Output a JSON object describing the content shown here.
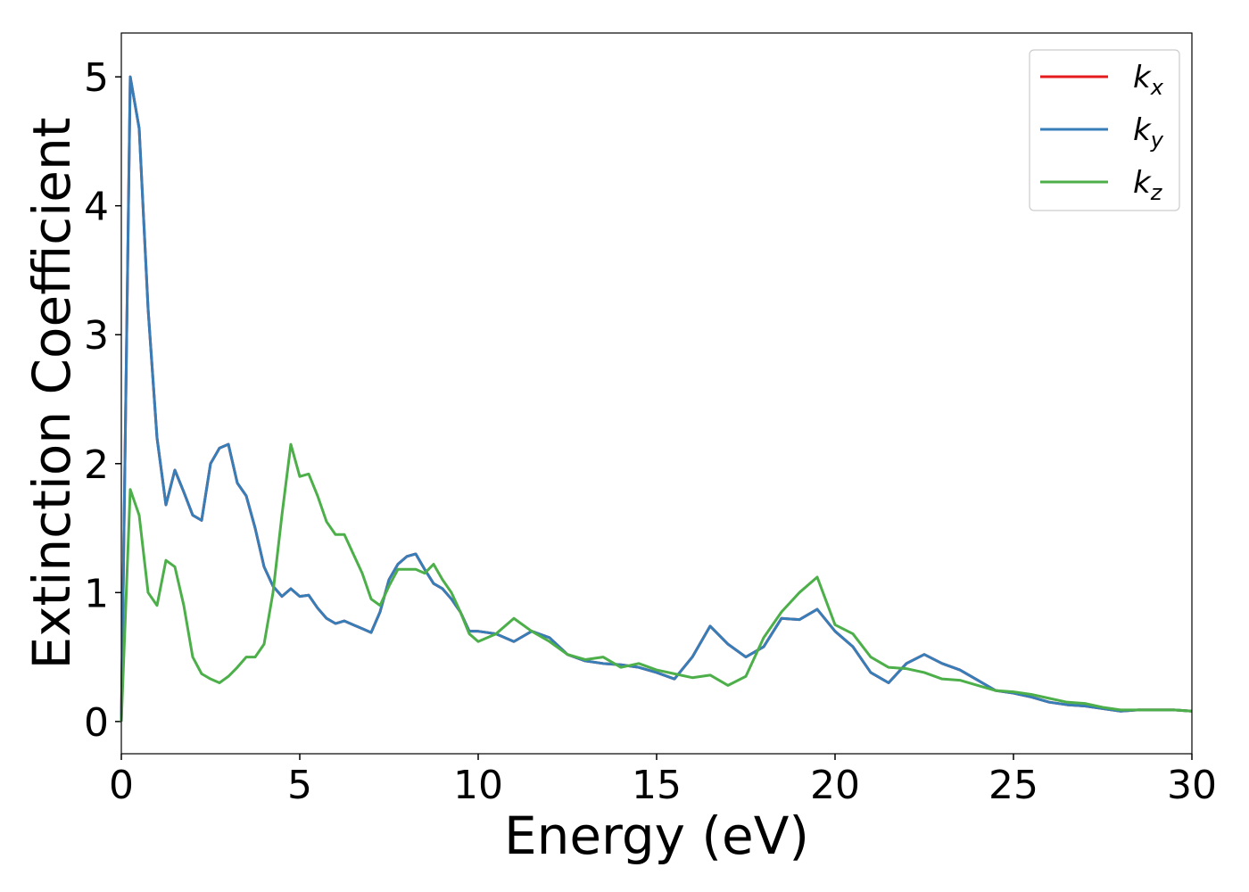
{
  "chart_data": {
    "type": "line",
    "xlabel": "Energy (eV)",
    "ylabel": "Extinction Coefficient",
    "x": [
      0,
      0.25,
      0.5,
      0.75,
      1,
      1.25,
      1.5,
      1.75,
      2,
      2.25,
      2.5,
      2.75,
      3,
      3.25,
      3.5,
      3.75,
      4,
      4.25,
      4.5,
      4.75,
      5,
      5.25,
      5.5,
      5.75,
      6,
      6.25,
      6.5,
      6.75,
      7,
      7.25,
      7.5,
      7.75,
      8,
      8.25,
      8.5,
      8.75,
      9,
      9.25,
      9.5,
      9.75,
      10,
      10.5,
      11,
      11.5,
      12,
      12.5,
      13,
      13.5,
      14,
      14.5,
      15,
      15.5,
      16,
      16.5,
      17,
      17.5,
      18,
      18.5,
      19,
      19.5,
      20,
      20.5,
      21,
      21.5,
      22,
      22.5,
      23,
      23.5,
      24,
      24.5,
      25,
      25.5,
      26,
      26.5,
      27,
      27.5,
      28,
      28.5,
      29,
      29.5,
      30
    ],
    "series": [
      {
        "name": "kx",
        "color": "#e41a1c",
        "values": [
          0,
          5.0,
          4.6,
          3.2,
          2.2,
          1.68,
          1.95,
          1.78,
          1.6,
          1.56,
          2.0,
          2.12,
          2.15,
          1.85,
          1.75,
          1.5,
          1.2,
          1.05,
          0.97,
          1.03,
          0.97,
          0.98,
          0.88,
          0.8,
          0.76,
          0.78,
          0.75,
          0.72,
          0.69,
          0.85,
          1.1,
          1.22,
          1.28,
          1.3,
          1.18,
          1.07,
          1.03,
          0.95,
          0.85,
          0.7,
          0.7,
          0.68,
          0.62,
          0.7,
          0.65,
          0.52,
          0.47,
          0.45,
          0.44,
          0.42,
          0.38,
          0.33,
          0.5,
          0.74,
          0.6,
          0.5,
          0.58,
          0.8,
          0.79,
          0.87,
          0.7,
          0.58,
          0.38,
          0.3,
          0.45,
          0.52,
          0.45,
          0.4,
          0.32,
          0.24,
          0.22,
          0.19,
          0.15,
          0.13,
          0.12,
          0.1,
          0.08,
          0.09,
          0.09,
          0.09,
          0.08
        ]
      },
      {
        "name": "ky",
        "color": "#377eb8",
        "values": [
          0,
          5.0,
          4.6,
          3.2,
          2.2,
          1.68,
          1.95,
          1.78,
          1.6,
          1.56,
          2.0,
          2.12,
          2.15,
          1.85,
          1.75,
          1.5,
          1.2,
          1.05,
          0.97,
          1.03,
          0.97,
          0.98,
          0.88,
          0.8,
          0.76,
          0.78,
          0.75,
          0.72,
          0.69,
          0.85,
          1.1,
          1.22,
          1.28,
          1.3,
          1.18,
          1.07,
          1.03,
          0.95,
          0.85,
          0.7,
          0.7,
          0.68,
          0.62,
          0.7,
          0.65,
          0.52,
          0.47,
          0.45,
          0.44,
          0.42,
          0.38,
          0.33,
          0.5,
          0.74,
          0.6,
          0.5,
          0.58,
          0.8,
          0.79,
          0.87,
          0.7,
          0.58,
          0.38,
          0.3,
          0.45,
          0.52,
          0.45,
          0.4,
          0.32,
          0.24,
          0.22,
          0.19,
          0.15,
          0.13,
          0.12,
          0.1,
          0.08,
          0.09,
          0.09,
          0.09,
          0.08
        ]
      },
      {
        "name": "kz",
        "color": "#4daf4a",
        "values": [
          0,
          1.8,
          1.6,
          1.0,
          0.9,
          1.25,
          1.2,
          0.9,
          0.5,
          0.37,
          0.33,
          0.3,
          0.35,
          0.42,
          0.5,
          0.5,
          0.6,
          1.0,
          1.6,
          2.15,
          1.9,
          1.92,
          1.75,
          1.55,
          1.45,
          1.45,
          1.3,
          1.15,
          0.95,
          0.9,
          1.05,
          1.18,
          1.18,
          1.18,
          1.15,
          1.22,
          1.1,
          1.0,
          0.85,
          0.68,
          0.62,
          0.68,
          0.8,
          0.7,
          0.62,
          0.52,
          0.48,
          0.5,
          0.42,
          0.45,
          0.4,
          0.37,
          0.34,
          0.36,
          0.28,
          0.35,
          0.65,
          0.85,
          1.0,
          1.12,
          0.75,
          0.68,
          0.5,
          0.42,
          0.41,
          0.38,
          0.33,
          0.32,
          0.28,
          0.24,
          0.23,
          0.21,
          0.18,
          0.15,
          0.14,
          0.11,
          0.09,
          0.09,
          0.09,
          0.09,
          0.08
        ]
      }
    ],
    "xlim": [
      0,
      30
    ],
    "xticks": [
      0,
      5,
      10,
      15,
      20,
      25,
      30
    ],
    "ylim": [
      -0.25,
      5.34
    ],
    "yticks": [
      0,
      1,
      2,
      3,
      4,
      5
    ],
    "legend": "upper right",
    "grid": false
  }
}
